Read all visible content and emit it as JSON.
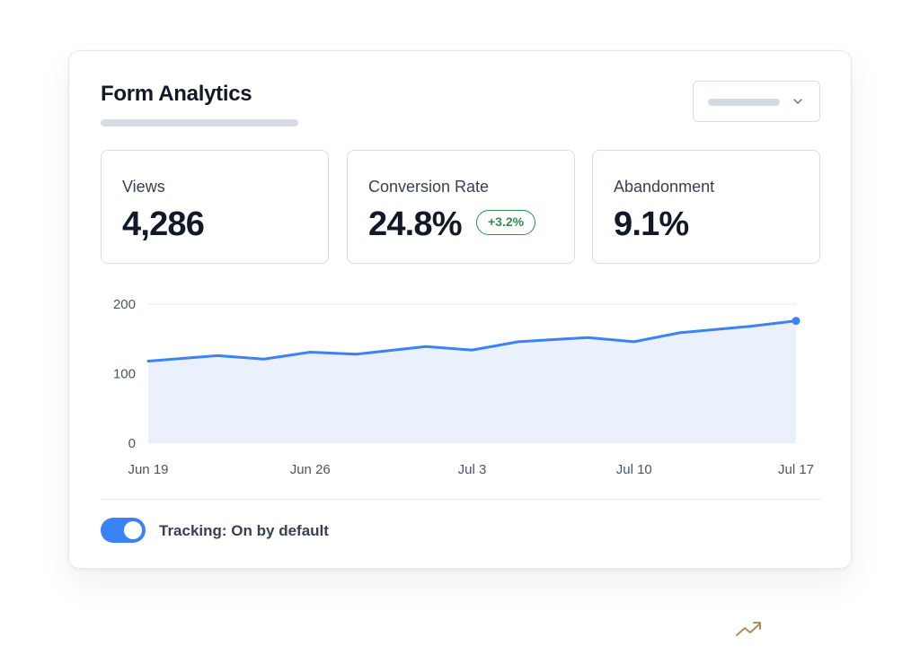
{
  "card": {
    "title": "Form Analytics"
  },
  "metrics": [
    {
      "label": "Views",
      "value": "4,286"
    },
    {
      "label": "Conversion Rate",
      "value": "24.8%",
      "delta": "+3.2%"
    },
    {
      "label": "Abandonment",
      "value": "9.1%"
    }
  ],
  "chart_data": {
    "type": "area",
    "x": [
      "Jun 19",
      "Jun 22",
      "Jun 24",
      "Jun 26",
      "Jun 28",
      "Jul 1",
      "Jul 3",
      "Jul 5",
      "Jul 8",
      "Jul 10",
      "Jul 12",
      "Jul 15",
      "Jul 17"
    ],
    "x_tick_labels": [
      "Jun 19",
      "Jun 26",
      "Jul 3",
      "Jul 10",
      "Jul 17"
    ],
    "y_tick_labels": [
      "0",
      "100",
      "200"
    ],
    "series": [
      {
        "values": [
          118,
          126,
          121,
          131,
          128,
          139,
          134,
          146,
          152,
          146,
          159,
          168,
          176
        ]
      }
    ],
    "ylim": [
      0,
      200
    ],
    "grid": true,
    "colors": {
      "line": "#3b82f6",
      "fill": "#eaf0fc",
      "grid": "#e7eaef"
    }
  },
  "footer": {
    "toggle_on": true,
    "toggle_label": "Tracking: On by default"
  },
  "icons": {
    "dropdown": "chevron-down-icon",
    "decor": "trending-up-icon"
  },
  "colors": {
    "accent": "#3b82f6",
    "positive": "#2f8f4e"
  }
}
